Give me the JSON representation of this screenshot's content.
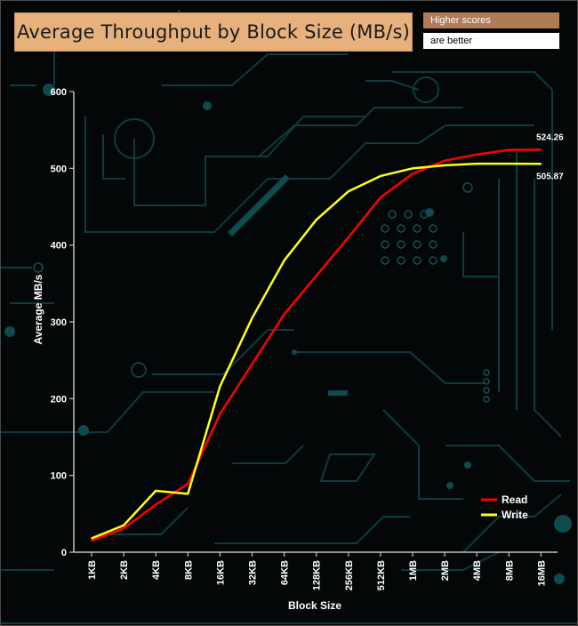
{
  "header": {
    "title": "Average Throughput by Block Size (MB/s)",
    "note_line1": "Higher scores",
    "note_line2": "are better"
  },
  "colors": {
    "background": "#040707",
    "circuit": "#0e3b3d",
    "title_bg": "#e6b17c",
    "note_bg": "#b07c58",
    "read": "#ff0000",
    "write": "#ffff1a",
    "axis": "#bfbfbf"
  },
  "chart_data": {
    "type": "line",
    "title": "Average Throughput by Block Size (MB/s)",
    "xlabel": "Block Size",
    "ylabel": "Average MB/s",
    "ylim": [
      0,
      600
    ],
    "yticks": [
      0,
      100,
      200,
      300,
      400,
      500,
      600
    ],
    "categories": [
      "1KB",
      "2KB",
      "4KB",
      "8KB",
      "16KB",
      "32KB",
      "64KB",
      "128KB",
      "256KB",
      "512KB",
      "1MB",
      "2MB",
      "4MB",
      "8MB",
      "16MB"
    ],
    "series": [
      {
        "name": "Read",
        "color": "#ff0000",
        "values": [
          15,
          31,
          62,
          89,
          180,
          245,
          310,
          360,
          410,
          462,
          493,
          510,
          518,
          524,
          524.26
        ]
      },
      {
        "name": "Write",
        "color": "#ffff1a",
        "values": [
          18,
          35,
          80,
          76,
          216,
          305,
          380,
          433,
          470,
          490,
          500,
          504,
          506,
          506,
          505.87
        ]
      }
    ],
    "end_labels": [
      "524.26",
      "505.87"
    ],
    "legend_position": "bottom-right",
    "grid": false
  }
}
